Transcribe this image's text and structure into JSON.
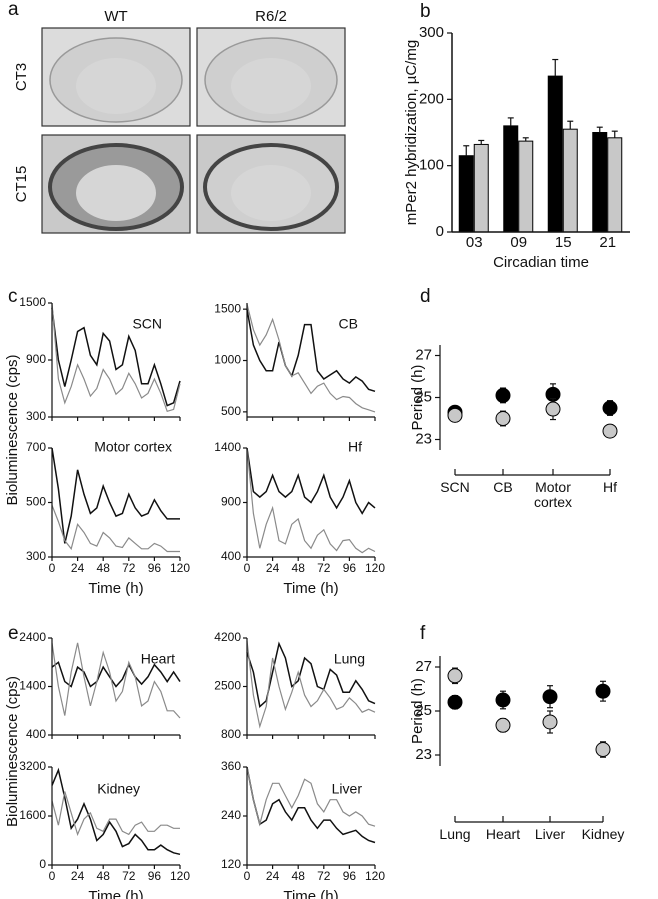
{
  "chart_data": [
    {
      "type": "image-grid",
      "panel": "a",
      "columns": [
        "WT",
        "R6/2"
      ],
      "rows": [
        "CT3",
        "CT15"
      ]
    },
    {
      "type": "bar",
      "panel": "b",
      "ylabel": "mPer2 hybridization, µC/mg",
      "xlabel": "Circadian time",
      "categories": [
        "03",
        "09",
        "15",
        "21"
      ],
      "ylim": [
        0,
        300
      ],
      "yticks": [
        0,
        100,
        200,
        300
      ],
      "series": [
        {
          "color": "#000000",
          "values": [
            115,
            160,
            235,
            150
          ],
          "errors": [
            15,
            12,
            25,
            8
          ]
        },
        {
          "color": "#c8c8c8",
          "values": [
            132,
            137,
            155,
            142
          ],
          "errors": [
            6,
            5,
            12,
            10
          ]
        }
      ]
    },
    {
      "type": "line",
      "panel": "c",
      "ylabel": "Bioluminescence (cps)",
      "xlabel": "Time (h)",
      "x": [
        0,
        6,
        12,
        18,
        24,
        30,
        36,
        42,
        48,
        54,
        60,
        66,
        72,
        78,
        84,
        90,
        96,
        102,
        108,
        114,
        120
      ],
      "xlim": [
        0,
        120
      ],
      "xticks": [
        0,
        24,
        48,
        72,
        96,
        120
      ],
      "subplots": [
        {
          "title": "SCN",
          "ylim": [
            300,
            1500
          ],
          "yticks": [
            300,
            900,
            1500
          ],
          "series": [
            {
              "color": "#111111",
              "values": [
                1450,
                900,
                620,
                900,
                1200,
                1240,
                950,
                850,
                1180,
                1100,
                800,
                850,
                1150,
                1000,
                650,
                650,
                850,
                650,
                420,
                450,
                680
              ]
            },
            {
              "color": "#8a8a8a",
              "values": [
                1500,
                700,
                450,
                620,
                850,
                700,
                520,
                600,
                800,
                700,
                540,
                600,
                760,
                650,
                500,
                550,
                700,
                550,
                360,
                380,
                650
              ]
            }
          ]
        },
        {
          "title": "CB",
          "ylim": [
            450,
            1560
          ],
          "yticks": [
            500,
            1000,
            1500
          ],
          "series": [
            {
              "color": "#111111",
              "values": [
                1500,
                1150,
                1000,
                900,
                900,
                1180,
                950,
                850,
                1050,
                1350,
                1350,
                900,
                820,
                860,
                900,
                820,
                780,
                840,
                800,
                720,
                700
              ]
            },
            {
              "color": "#8a8a8a",
              "values": [
                1550,
                1300,
                1150,
                1250,
                1400,
                1200,
                950,
                850,
                880,
                780,
                680,
                750,
                780,
                680,
                620,
                650,
                640,
                580,
                540,
                520,
                500
              ]
            }
          ]
        },
        {
          "title": "Motor cortex",
          "ylim": [
            300,
            700
          ],
          "yticks": [
            300,
            500,
            700
          ],
          "series": [
            {
              "color": "#111111",
              "values": [
                700,
                550,
                350,
                450,
                620,
                530,
                460,
                480,
                560,
                500,
                450,
                460,
                530,
                480,
                450,
                460,
                510,
                470,
                440,
                440,
                440
              ]
            },
            {
              "color": "#8a8a8a",
              "values": [
                490,
                430,
                360,
                330,
                420,
                390,
                350,
                340,
                390,
                370,
                340,
                335,
                370,
                350,
                330,
                330,
                350,
                340,
                320,
                320,
                320
              ]
            }
          ]
        },
        {
          "title": "Hf",
          "ylim": [
            400,
            1400
          ],
          "yticks": [
            400,
            900,
            1400
          ],
          "series": [
            {
              "color": "#111111",
              "values": [
                1400,
                1000,
                950,
                1000,
                1150,
                1000,
                950,
                1000,
                1150,
                950,
                900,
                1000,
                1150,
                950,
                850,
                950,
                1100,
                900,
                800,
                900,
                850
              ]
            },
            {
              "color": "#8a8a8a",
              "values": [
                1400,
                800,
                480,
                700,
                850,
                550,
                520,
                700,
                750,
                550,
                480,
                600,
                650,
                520,
                460,
                550,
                560,
                480,
                440,
                480,
                450
              ]
            }
          ]
        }
      ]
    },
    {
      "type": "dot",
      "panel": "d",
      "ylabel": "Period (h)",
      "categories": [
        "SCN",
        "CB",
        "Motor cortex",
        "Hf"
      ],
      "ylim": [
        22.5,
        27.5
      ],
      "yticks": [
        23,
        25,
        27
      ],
      "series": [
        {
          "color": "#000000",
          "values": [
            24.3,
            25.1,
            25.15,
            24.5
          ],
          "errors": [
            0.1,
            0.35,
            0.5,
            0.35
          ]
        },
        {
          "color": "#c8c8c8",
          "values": [
            24.15,
            24.0,
            24.45,
            23.4
          ],
          "errors": [
            0.3,
            0.35,
            0.5,
            0.2
          ]
        }
      ]
    },
    {
      "type": "line",
      "panel": "e",
      "ylabel": "Bioluminescence (cps)",
      "xlabel": "Time (h)",
      "x": [
        0,
        6,
        12,
        18,
        24,
        30,
        36,
        42,
        48,
        54,
        60,
        66,
        72,
        78,
        84,
        90,
        96,
        102,
        108,
        114,
        120
      ],
      "xlim": [
        0,
        120
      ],
      "xticks": [
        0,
        24,
        48,
        72,
        96,
        120
      ],
      "subplots": [
        {
          "title": "Heart",
          "ylim": [
            400,
            2400
          ],
          "yticks": [
            400,
            1400,
            2400
          ],
          "series": [
            {
              "color": "#111111",
              "values": [
                1800,
                1900,
                1500,
                1400,
                1800,
                1700,
                1400,
                1500,
                1800,
                1600,
                1400,
                1550,
                1850,
                1600,
                1450,
                1600,
                1850,
                1700,
                1500,
                1700,
                1500
              ]
            },
            {
              "color": "#8a8a8a",
              "values": [
                2300,
                1400,
                800,
                1700,
                2300,
                1600,
                1000,
                1500,
                2100,
                1700,
                1100,
                1300,
                1900,
                1600,
                1000,
                1100,
                1500,
                1300,
                900,
                900,
                750
              ]
            }
          ]
        },
        {
          "title": "Lung",
          "ylim": [
            800,
            4200
          ],
          "yticks": [
            800,
            2500,
            4200
          ],
          "series": [
            {
              "color": "#111111",
              "values": [
                3700,
                3000,
                1800,
                2000,
                3000,
                4000,
                3500,
                2500,
                2700,
                3500,
                3300,
                2500,
                2400,
                3100,
                2900,
                2300,
                2300,
                2700,
                2400,
                2000,
                1900
              ]
            },
            {
              "color": "#8a8a8a",
              "values": [
                4100,
                2200,
                1100,
                1800,
                3500,
                2500,
                1700,
                2300,
                3000,
                2200,
                1800,
                2000,
                2400,
                2100,
                1700,
                1800,
                2100,
                1900,
                1600,
                1700,
                1600
              ]
            }
          ]
        },
        {
          "title": "Kidney",
          "ylim": [
            0,
            3200
          ],
          "yticks": [
            0,
            1600,
            3200
          ],
          "series": [
            {
              "color": "#111111",
              "values": [
                2600,
                3100,
                2200,
                1200,
                1500,
                2000,
                1500,
                800,
                1000,
                1400,
                1100,
                600,
                700,
                1000,
                800,
                500,
                500,
                650,
                500,
                400,
                350
              ]
            },
            {
              "color": "#8a8a8a",
              "values": [
                2100,
                1300,
                2400,
                1700,
                1000,
                1500,
                1700,
                1200,
                1100,
                1500,
                1500,
                1100,
                1000,
                1300,
                1400,
                1100,
                1100,
                1300,
                1300,
                1200,
                1200
              ]
            }
          ]
        },
        {
          "title": "Liver",
          "ylim": [
            120,
            360
          ],
          "yticks": [
            120,
            240,
            360
          ],
          "series": [
            {
              "color": "#111111",
              "values": [
                360,
                280,
                220,
                230,
                270,
                280,
                250,
                230,
                260,
                260,
                230,
                210,
                230,
                230,
                210,
                195,
                200,
                205,
                190,
                180,
                175
              ]
            },
            {
              "color": "#8a8a8a",
              "values": [
                360,
                280,
                220,
                280,
                320,
                320,
                290,
                260,
                290,
                330,
                320,
                270,
                250,
                280,
                280,
                250,
                240,
                250,
                240,
                220,
                215
              ]
            }
          ]
        }
      ]
    },
    {
      "type": "dot",
      "panel": "f",
      "ylabel": "Period (h)",
      "categories": [
        "Lung",
        "Heart",
        "Liver",
        "Kidney"
      ],
      "ylim": [
        22.5,
        27.5
      ],
      "yticks": [
        23,
        25,
        27
      ],
      "series": [
        {
          "color": "#000000",
          "values": [
            25.4,
            25.5,
            25.65,
            25.9
          ],
          "errors": [
            0.3,
            0.4,
            0.5,
            0.45
          ]
        },
        {
          "color": "#c8c8c8",
          "values": [
            26.6,
            24.35,
            24.5,
            23.25
          ],
          "errors": [
            0.35,
            0.3,
            0.5,
            0.35
          ]
        }
      ]
    }
  ]
}
